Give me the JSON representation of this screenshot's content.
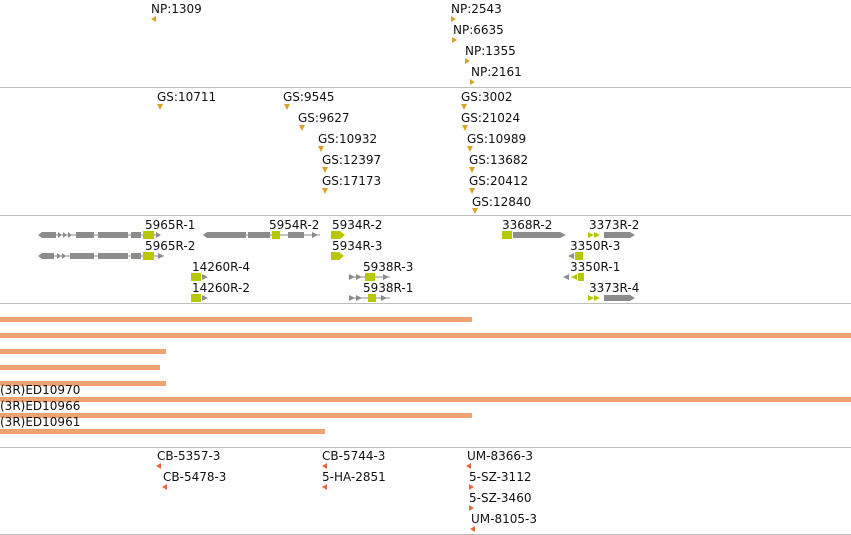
{
  "tracks": {
    "np": {
      "features": [
        {
          "label": "NP:1309"
        },
        {
          "label": "NP:2543"
        },
        {
          "label": "NP:6635"
        },
        {
          "label": "NP:1355"
        },
        {
          "label": "NP:2161"
        }
      ]
    },
    "gs": {
      "features": [
        {
          "label": "GS:10711"
        },
        {
          "label": "GS:9545"
        },
        {
          "label": "GS:9627"
        },
        {
          "label": "GS:10932"
        },
        {
          "label": "GS:12397"
        },
        {
          "label": "GS:17173"
        },
        {
          "label": "GS:3002"
        },
        {
          "label": "GS:21024"
        },
        {
          "label": "GS:10989"
        },
        {
          "label": "GS:13682"
        },
        {
          "label": "GS:20412"
        },
        {
          "label": "GS:12840"
        }
      ]
    },
    "genes": {
      "features": [
        {
          "label": "5965R-1"
        },
        {
          "label": "5965R-2"
        },
        {
          "label": "5954R-2"
        },
        {
          "label": "5934R-2"
        },
        {
          "label": "5934R-3"
        },
        {
          "label": "14260R-4"
        },
        {
          "label": "14260R-2"
        },
        {
          "label": "5938R-3"
        },
        {
          "label": "5938R-1"
        },
        {
          "label": "3368R-2"
        },
        {
          "label": "3373R-2"
        },
        {
          "label": "3350R-3"
        },
        {
          "label": "3350R-1"
        },
        {
          "label": "3373R-4"
        }
      ]
    },
    "deletions": {
      "labels": [
        "(3R)ED10970",
        "(3R)ED10966",
        "(3R)ED10961"
      ]
    },
    "insertions": {
      "features": [
        {
          "label": "CB-5357-3"
        },
        {
          "label": "CB-5478-3"
        },
        {
          "label": "CB-5744-3"
        },
        {
          "label": "5-HA-2851"
        },
        {
          "label": "UM-8366-3"
        },
        {
          "label": "5-SZ-3112"
        },
        {
          "label": "5-SZ-3460"
        },
        {
          "label": "UM-8105-3"
        }
      ]
    }
  },
  "colors": {
    "flag_gold": "#d9a227",
    "flag_red": "#e8683b",
    "gene_gray": "#8c8c8c",
    "gene_highlight": "#b8c800",
    "deletion_bar": "#f0a370",
    "separator": "#bdbdbd"
  }
}
